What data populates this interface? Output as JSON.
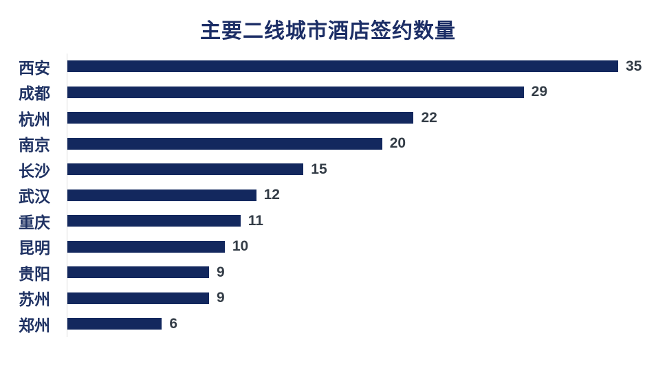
{
  "title": "主要二线城市酒店签约数量",
  "colors": {
    "bar": "#13285e",
    "title": "#1c2e66",
    "category_label": "#1f3263",
    "value_label": "#333c46",
    "axis_line": "#dcdcdc",
    "background": "#ffffff"
  },
  "chart_data": {
    "type": "bar",
    "orientation": "horizontal",
    "title": "主要二线城市酒店签约数量",
    "categories": [
      "西安",
      "成都",
      "杭州",
      "南京",
      "长沙",
      "武汉",
      "重庆",
      "昆明",
      "贵阳",
      "苏州",
      "郑州"
    ],
    "values": [
      35,
      29,
      22,
      20,
      15,
      12,
      11,
      10,
      9,
      9,
      6
    ],
    "xlabel": "",
    "ylabel": "",
    "xlim": [
      0,
      35
    ],
    "grid": false,
    "legend": false,
    "data_labels": true
  }
}
